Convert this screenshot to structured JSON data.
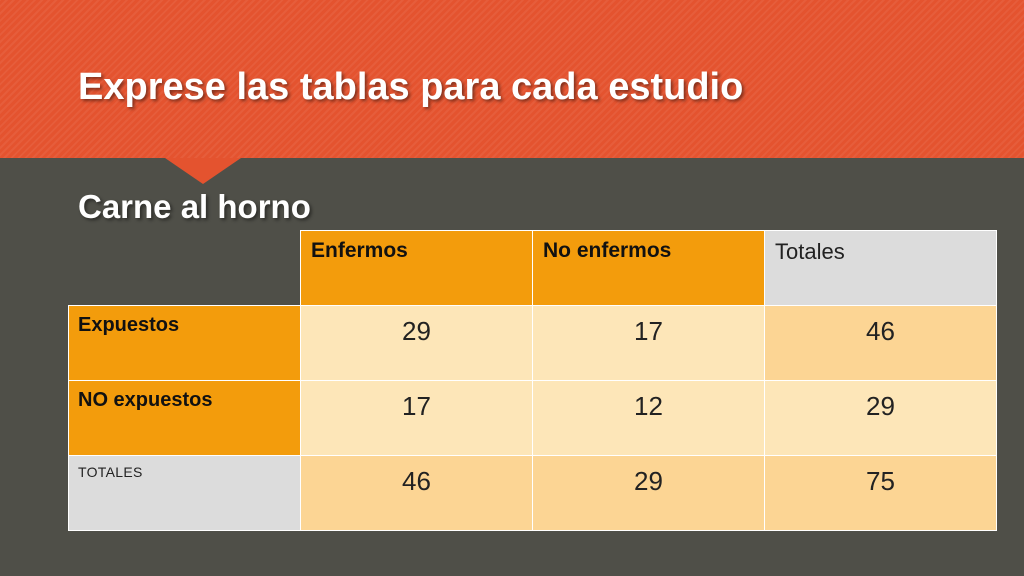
{
  "slide": {
    "title": "Exprese las tablas para cada estudio",
    "subtitle": "Carne al horno"
  },
  "table": {
    "column_headers": [
      "Enfermos",
      "No enfermos",
      "Totales"
    ],
    "rows": [
      {
        "label": "Expuestos",
        "values": [
          "29",
          "17",
          "46"
        ]
      },
      {
        "label": "NO expuestos",
        "values": [
          "17",
          "12",
          "29"
        ]
      },
      {
        "label": "TOTALES",
        "values": [
          "46",
          "29",
          "75"
        ]
      }
    ]
  },
  "colors": {
    "banner": "#e4532f",
    "background": "#4f4f48",
    "header_orange": "#f39c0c",
    "header_grey": "#dcdcdc",
    "cell_light": "#fde6b8",
    "cell_mid": "#fcd594"
  }
}
